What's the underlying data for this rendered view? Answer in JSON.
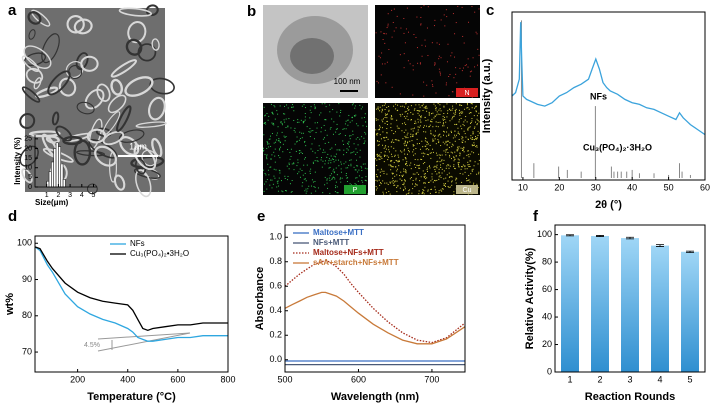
{
  "figure": {
    "panel_labels": [
      "a",
      "b",
      "c",
      "d",
      "e",
      "f"
    ],
    "sem_scale_bar": "1μm",
    "tem_scale_bar": "100 nm",
    "element_maps": [
      "N",
      "P",
      "Cu"
    ],
    "tga_annotation": "4.5%"
  },
  "chart_data": [
    {
      "type": "histogram",
      "x_label": "Size(μm)",
      "y_label": "Intensity (%)",
      "bins": [
        1.0,
        1.2,
        1.4,
        1.6,
        1.8,
        2.0,
        2.2,
        2.4,
        2.6
      ],
      "values": [
        3,
        8,
        13,
        20,
        23,
        21,
        12,
        4
      ],
      "color": "#ffffff",
      "xlim": [
        0,
        5.3
      ],
      "xticks": [
        1,
        2,
        3,
        4,
        5
      ],
      "ylim": [
        0,
        27
      ],
      "yticks": [
        0,
        5,
        10,
        15,
        20,
        25
      ]
    },
    {
      "type": "line",
      "x_label": "2θ (°)",
      "y_label": "Intensity (a.u.)",
      "xlim": [
        7,
        60
      ],
      "xticks": [
        10,
        20,
        30,
        40,
        50,
        60
      ],
      "ylim": [
        0,
        100
      ],
      "series": [
        {
          "name": "NFs",
          "color": "#3ba3dc",
          "x": [
            7,
            8,
            9,
            9.4,
            9.7,
            10,
            11,
            12,
            14,
            16,
            18,
            20,
            22,
            24,
            26,
            28,
            29,
            30,
            31,
            32,
            33,
            34,
            36,
            38,
            40,
            42,
            44,
            46,
            48,
            50,
            52,
            53,
            54,
            55,
            56,
            58,
            60
          ],
          "values": [
            50,
            52,
            60,
            94,
            70,
            50,
            48,
            47,
            45,
            44,
            46,
            50,
            52,
            55,
            57,
            60,
            66,
            72,
            66,
            58,
            55,
            53,
            51,
            48,
            46,
            45,
            43,
            42,
            40,
            38,
            36,
            40,
            37,
            35,
            33,
            30,
            27
          ]
        }
      ],
      "reference": {
        "name": "Cu₃(PO₄)₂·3H₂O",
        "color": "#888888",
        "x": [
          9.6,
          13,
          19.8,
          22.2,
          26,
          29.9,
          34.3,
          35,
          36,
          37,
          38.5,
          40,
          42,
          46,
          50,
          53,
          53.7,
          56
        ],
        "values": [
          95,
          10,
          8,
          6,
          5,
          44,
          8,
          5,
          5,
          5,
          5,
          6,
          4,
          4,
          3,
          10,
          5,
          3
        ]
      }
    },
    {
      "type": "line",
      "x_label": "Temperature (°C)",
      "y_label": "wt%",
      "xlim": [
        30,
        800
      ],
      "xticks": [
        200,
        400,
        600,
        800
      ],
      "ylim": [
        64.5,
        102
      ],
      "yticks": [
        70,
        80,
        90,
        100
      ],
      "legend": "upper right",
      "x": [
        30,
        50,
        80,
        100,
        150,
        200,
        250,
        300,
        350,
        400,
        420,
        440,
        460,
        480,
        500,
        550,
        600,
        650,
        700,
        750,
        800
      ],
      "series": [
        {
          "name": "NFs",
          "color": "#2fa7e0",
          "values": [
            99,
            98,
            94,
            92,
            86,
            82.5,
            80.5,
            79,
            78,
            76.5,
            75.5,
            74,
            73.5,
            73,
            73,
            73.5,
            74,
            74,
            74.5,
            74.5,
            74.5
          ]
        },
        {
          "name": "Cu₃(PO₄)₂•3H₂O",
          "color": "#000000",
          "values": [
            99,
            98.5,
            95,
            93,
            89,
            86.5,
            85,
            84,
            83.5,
            83,
            81.5,
            79,
            76.5,
            76,
            76.5,
            77,
            77.5,
            77.5,
            78,
            78,
            78
          ]
        }
      ]
    },
    {
      "type": "line",
      "x_label": "Wavelength (nm)",
      "y_label": "Absorbance",
      "xlim": [
        500,
        745
      ],
      "xticks": [
        500,
        600,
        700
      ],
      "ylim": [
        -0.1,
        1.1
      ],
      "yticks": [
        {
          "value": 0,
          "label": "0.0"
        },
        0.2,
        0.4,
        0.6,
        0.8,
        {
          "value": 1,
          "label": "1.0"
        }
      ],
      "legend": "upper left",
      "x": [
        500,
        510,
        520,
        530,
        540,
        550,
        555,
        560,
        570,
        580,
        590,
        600,
        620,
        640,
        660,
        680,
        700,
        720,
        745
      ],
      "series": [
        {
          "name": "Maltose+MTT",
          "color": "#3a6fc4",
          "values": [
            -0.01,
            -0.01,
            -0.01,
            -0.01,
            -0.01,
            -0.01,
            -0.01,
            -0.01,
            -0.01,
            -0.01,
            -0.01,
            -0.01,
            -0.01,
            -0.01,
            -0.01,
            -0.01,
            -0.01,
            -0.01,
            -0.01
          ]
        },
        {
          "name": "NFs+MTT",
          "color": "#4a5a78",
          "values": [
            -0.04,
            -0.04,
            -0.04,
            -0.04,
            -0.04,
            -0.04,
            -0.04,
            -0.04,
            -0.04,
            -0.04,
            -0.04,
            -0.04,
            -0.04,
            -0.04,
            -0.04,
            -0.04,
            -0.04,
            -0.04,
            -0.04
          ]
        },
        {
          "name": "Maltose+NFs+MTT",
          "color": "#a52a1a",
          "line_style": "dotted",
          "values": [
            0.6,
            0.65,
            0.7,
            0.74,
            0.78,
            0.8,
            0.81,
            0.8,
            0.76,
            0.7,
            0.62,
            0.55,
            0.42,
            0.31,
            0.22,
            0.16,
            0.14,
            0.18,
            0.3
          ]
        },
        {
          "name": "sAA+starch+NFs+MTT",
          "color": "#c87a3a",
          "values": [
            0.42,
            0.45,
            0.48,
            0.51,
            0.53,
            0.55,
            0.55,
            0.54,
            0.52,
            0.48,
            0.43,
            0.38,
            0.29,
            0.22,
            0.16,
            0.13,
            0.13,
            0.17,
            0.27
          ]
        }
      ]
    },
    {
      "type": "bar",
      "x_label": "Reaction Rounds",
      "y_label": "Relative Activity(%)",
      "categories": [
        "1",
        "2",
        "3",
        "4",
        "5"
      ],
      "values": [
        99.5,
        99,
        97.5,
        92,
        87.5
      ],
      "errors": [
        0.4,
        0.4,
        0.6,
        0.7,
        0.5
      ],
      "color": "#5bb5ea",
      "ylim": [
        0,
        107
      ],
      "yticks": [
        0,
        20,
        40,
        60,
        80,
        100
      ]
    }
  ]
}
